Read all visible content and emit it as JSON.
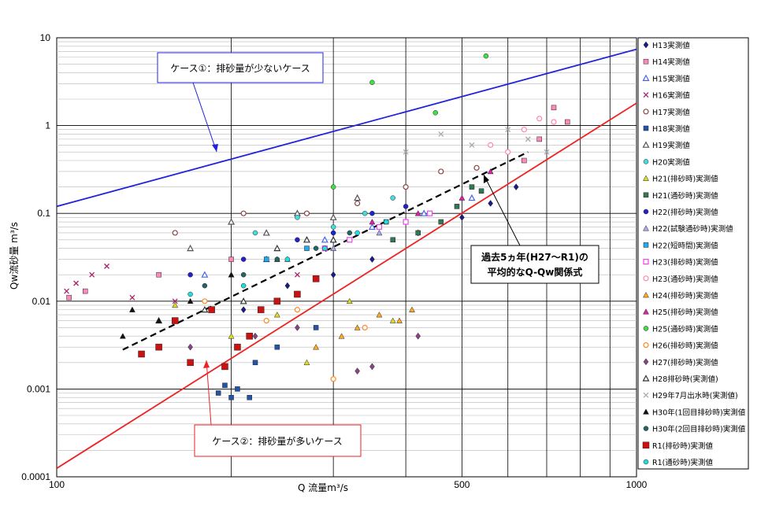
{
  "chart_data": {
    "type": "scatter",
    "x_scale": "log",
    "y_scale": "log",
    "xlim": [
      100,
      1000
    ],
    "ylim": [
      0.0001,
      10
    ],
    "xlabel": "Q 流量m³/s",
    "ylabel": "Qw流砂量 m³/s",
    "x_ticks": [
      "100",
      "500",
      "1000"
    ],
    "y_ticks": [
      "10",
      "1",
      "0.1",
      "0.01",
      "0.001",
      "0.0001"
    ],
    "grid": true,
    "legend_position": "right",
    "lines": [
      {
        "style": "solid",
        "color": "#2222dd",
        "points": [
          [
            100,
            0.12
          ],
          [
            1000,
            7.4
          ]
        ]
      },
      {
        "style": "solid",
        "color": "#ee2222",
        "points": [
          [
            100,
            0.000125
          ],
          [
            1000,
            1.8
          ]
        ]
      },
      {
        "style": "dashed",
        "color": "#000000",
        "points": [
          [
            130,
            0.0028
          ],
          [
            650,
            0.5
          ]
        ]
      }
    ],
    "annotations": [
      {
        "text": "ケース①：排砂量が少ないケース",
        "color": "#2222dd"
      },
      {
        "text": "ケース②：排砂量が多いケース",
        "color": "#ee2222"
      },
      {
        "text": "過去5ヵ年(H27～R1)の",
        "color": "#000000"
      },
      {
        "text": "平均的なQ-Qw関係式",
        "color": "#000000"
      }
    ],
    "series": [
      {
        "name": "H13実測値",
        "color": "#1a1a8a",
        "marker": "diamond",
        "points": [
          [
            210,
            0.008
          ],
          [
            250,
            0.015
          ],
          [
            300,
            0.02
          ],
          [
            350,
            0.03
          ],
          [
            420,
            0.06
          ],
          [
            500,
            0.09
          ],
          [
            560,
            0.13
          ],
          [
            620,
            0.2
          ]
        ]
      },
      {
        "name": "H14実測値",
        "color": "#ff88bb",
        "marker": "square",
        "points": [
          [
            105,
            0.011
          ],
          [
            112,
            0.013
          ],
          [
            150,
            0.02
          ],
          [
            200,
            0.03
          ],
          [
            640,
            0.4
          ],
          [
            680,
            0.7
          ],
          [
            720,
            1.6
          ],
          [
            760,
            1.1
          ]
        ]
      },
      {
        "name": "H15実測値",
        "color": "#4466ee",
        "marker": "triangle-open",
        "points": [
          [
            180,
            0.02
          ],
          [
            230,
            0.03
          ],
          [
            290,
            0.05
          ],
          [
            350,
            0.07
          ],
          [
            430,
            0.1
          ],
          [
            520,
            0.15
          ]
        ]
      },
      {
        "name": "H16実測値",
        "color": "#aa2266",
        "marker": "x",
        "points": [
          [
            104,
            0.013
          ],
          [
            108,
            0.016
          ],
          [
            115,
            0.02
          ],
          [
            122,
            0.025
          ],
          [
            135,
            0.011
          ],
          [
            160,
            0.01
          ],
          [
            260,
            0.02
          ]
        ]
      },
      {
        "name": "H17実測値",
        "color": "#884444",
        "marker": "circle-open",
        "points": [
          [
            160,
            0.06
          ],
          [
            210,
            0.1
          ],
          [
            270,
            0.1
          ],
          [
            330,
            0.13
          ],
          [
            400,
            0.2
          ],
          [
            460,
            0.3
          ],
          [
            530,
            0.33
          ]
        ]
      },
      {
        "name": "H18実測値",
        "color": "#2255aa",
        "marker": "square",
        "points": [
          [
            190,
            0.0009
          ],
          [
            195,
            0.0011
          ],
          [
            200,
            0.0008
          ],
          [
            215,
            0.0008
          ],
          [
            205,
            0.001
          ],
          [
            220,
            0.002
          ],
          [
            240,
            0.003
          ],
          [
            280,
            0.005
          ]
        ]
      },
      {
        "name": "H19実測値",
        "color": "#555555",
        "marker": "triangle-open",
        "points": [
          [
            170,
            0.04
          ],
          [
            200,
            0.08
          ],
          [
            230,
            0.06
          ],
          [
            260,
            0.1
          ],
          [
            300,
            0.09
          ],
          [
            330,
            0.15
          ]
        ]
      },
      {
        "name": "H20実測値",
        "color": "#44dddd",
        "marker": "circle",
        "points": [
          [
            220,
            0.06
          ],
          [
            260,
            0.09
          ],
          [
            300,
            0.07
          ],
          [
            340,
            0.1
          ],
          [
            380,
            0.15
          ]
        ]
      },
      {
        "name": "H21(排砂時)実測値",
        "color": "#dddd22",
        "marker": "triangle",
        "points": [
          [
            160,
            0.009
          ],
          [
            200,
            0.004
          ],
          [
            240,
            0.007
          ],
          [
            270,
            0.002
          ],
          [
            320,
            0.01
          ],
          [
            380,
            0.006
          ]
        ]
      },
      {
        "name": "H21(通砂時)実測値",
        "color": "#337755",
        "marker": "square",
        "points": [
          [
            380,
            0.05
          ],
          [
            420,
            0.06
          ],
          [
            460,
            0.08
          ],
          [
            490,
            0.12
          ],
          [
            520,
            0.2
          ],
          [
            540,
            0.18
          ]
        ]
      },
      {
        "name": "H22(排砂時)実測値",
        "color": "#2222cc",
        "marker": "circle",
        "points": [
          [
            170,
            0.02
          ],
          [
            210,
            0.03
          ],
          [
            260,
            0.05
          ],
          [
            300,
            0.06
          ],
          [
            350,
            0.1
          ],
          [
            400,
            0.12
          ]
        ]
      },
      {
        "name": "H22(試験通砂時)実測値",
        "color": "#aaaaee",
        "marker": "triangle",
        "points": [
          [
            200,
            0.02
          ],
          [
            250,
            0.03
          ],
          [
            300,
            0.04
          ],
          [
            360,
            0.06
          ]
        ]
      },
      {
        "name": "H22(短時間)実測値",
        "color": "#22aaee",
        "marker": "square",
        "points": [
          [
            230,
            0.03
          ],
          [
            270,
            0.04
          ],
          [
            320,
            0.05
          ],
          [
            370,
            0.08
          ]
        ]
      },
      {
        "name": "H23(排砂時)実測値",
        "color": "#ee44ee",
        "marker": "square-open",
        "points": [
          [
            290,
            0.04
          ],
          [
            320,
            0.05
          ],
          [
            360,
            0.07
          ],
          [
            400,
            0.08
          ],
          [
            440,
            0.1
          ]
        ]
      },
      {
        "name": "H23(通砂時)実測値",
        "color": "#ff88aa",
        "marker": "circle-open",
        "points": [
          [
            560,
            0.6
          ],
          [
            600,
            0.5
          ],
          [
            640,
            0.9
          ],
          [
            680,
            1.2
          ],
          [
            720,
            1.1
          ]
        ]
      },
      {
        "name": "H24(排砂時)実測値",
        "color": "#ffaa22",
        "marker": "triangle",
        "points": [
          [
            280,
            0.003
          ],
          [
            310,
            0.004
          ],
          [
            330,
            0.005
          ],
          [
            360,
            0.007
          ],
          [
            390,
            0.006
          ],
          [
            410,
            0.008
          ]
        ]
      },
      {
        "name": "H25(排砂時)実測値",
        "color": "#dd22aa",
        "marker": "triangle",
        "points": [
          [
            300,
            0.05
          ],
          [
            350,
            0.08
          ],
          [
            420,
            0.1
          ],
          [
            500,
            0.15
          ],
          [
            560,
            0.3
          ]
        ]
      },
      {
        "name": "H25(通砂時)実測値",
        "color": "#44dd44",
        "marker": "circle",
        "points": [
          [
            300,
            0.2
          ],
          [
            350,
            3.1
          ],
          [
            450,
            1.4
          ],
          [
            550,
            6.2
          ]
        ]
      },
      {
        "name": "H26(排砂時)実測値",
        "color": "#ff8822",
        "marker": "circle-open",
        "points": [
          [
            180,
            0.01
          ],
          [
            230,
            0.006
          ],
          [
            260,
            0.008
          ],
          [
            300,
            0.0013
          ],
          [
            340,
            0.005
          ]
        ]
      },
      {
        "name": "H27(排砂時)実測値",
        "color": "#884488",
        "marker": "diamond",
        "points": [
          [
            170,
            0.003
          ],
          [
            220,
            0.004
          ],
          [
            260,
            0.005
          ],
          [
            330,
            0.0016
          ],
          [
            350,
            0.0018
          ],
          [
            420,
            0.004
          ]
        ]
      },
      {
        "name": "H28排砂時(実測値)",
        "color": "#333333",
        "marker": "triangle-open",
        "points": [
          [
            150,
            0.006
          ],
          [
            180,
            0.008
          ],
          [
            210,
            0.01
          ],
          [
            240,
            0.04
          ],
          [
            270,
            0.05
          ],
          [
            300,
            0.05
          ]
        ]
      },
      {
        "name": "H29年7月出水時(実測値)",
        "color": "#aaaaaa",
        "marker": "x",
        "points": [
          [
            400,
            0.5
          ],
          [
            460,
            0.8
          ],
          [
            520,
            0.6
          ],
          [
            600,
            0.9
          ],
          [
            650,
            0.7
          ],
          [
            700,
            0.5
          ]
        ]
      },
      {
        "name": "H30年(1回目排砂時)実測値",
        "color": "#111111",
        "marker": "triangle",
        "points": [
          [
            130,
            0.004
          ],
          [
            135,
            0.008
          ],
          [
            150,
            0.006
          ],
          [
            170,
            0.01
          ],
          [
            200,
            0.02
          ],
          [
            240,
            0.03
          ]
        ]
      },
      {
        "name": "H30年(2回目排砂時)実測値",
        "color": "#226666",
        "marker": "circle",
        "points": [
          [
            180,
            0.015
          ],
          [
            210,
            0.02
          ],
          [
            240,
            0.03
          ],
          [
            280,
            0.04
          ],
          [
            320,
            0.06
          ]
        ]
      },
      {
        "name": "R1(排砂時)実測値",
        "color": "#cc1111",
        "marker": "square",
        "points": [
          [
            140,
            0.0025
          ],
          [
            150,
            0.003
          ],
          [
            160,
            0.006
          ],
          [
            170,
            0.002
          ],
          [
            185,
            0.008
          ],
          [
            195,
            0.0018
          ],
          [
            205,
            0.003
          ],
          [
            215,
            0.004
          ],
          [
            225,
            0.008
          ],
          [
            240,
            0.01
          ],
          [
            260,
            0.012
          ],
          [
            280,
            0.018
          ]
        ]
      },
      {
        "name": "R1(通砂時)実測値",
        "color": "#22dddd",
        "marker": "circle",
        "points": [
          [
            170,
            0.012
          ],
          [
            210,
            0.015
          ],
          [
            250,
            0.03
          ],
          [
            290,
            0.04
          ],
          [
            330,
            0.06
          ],
          [
            370,
            0.08
          ]
        ]
      }
    ]
  }
}
